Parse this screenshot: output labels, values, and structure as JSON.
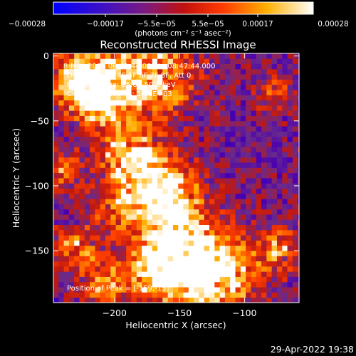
{
  "colorbar": {
    "tick_labels": [
      "-0.00028",
      "-0.00017",
      "-5.5e-05",
      "5.5e-05",
      "0.00017",
      "0.00028"
    ],
    "unit_label": "(photons cm⁻² s⁻¹ asec⁻²)"
  },
  "chart_data": {
    "type": "heatmap",
    "title": "Reconstructed RHESSI Image",
    "xlabel": "Heliocentric X (arcsec)",
    "ylabel": "Heliocentric Y (arcsec)",
    "xlim": [
      -247,
      -58
    ],
    "ylim": [
      -190,
      2
    ],
    "x_ticks": [
      -200,
      -150,
      -100
    ],
    "y_ticks": [
      0,
      -50,
      -100,
      -150
    ],
    "x_tick_labels": [
      "−200",
      "−150",
      "−100"
    ],
    "y_tick_labels": [
      "0",
      "−50",
      "−100",
      "−150"
    ],
    "value_range": [
      -0.00028,
      0.00028
    ],
    "colormap": [
      "#0000ff",
      "#4a00b0",
      "#6a2a8c",
      "#c01810",
      "#ff4000",
      "#ffb000",
      "#ffffff"
    ],
    "peak": [
      -159,
      -15
    ],
    "bright_regions": [
      {
        "x": -230,
        "y": -20,
        "w": 1.0,
        "r": 14
      },
      {
        "x": -185,
        "y": -15,
        "w": 1.0,
        "r": 28
      },
      {
        "x": -215,
        "y": -40,
        "w": 0.6,
        "r": 12
      },
      {
        "x": -190,
        "y": -80,
        "w": 0.8,
        "r": 16
      },
      {
        "x": -165,
        "y": -105,
        "w": 0.9,
        "r": 18
      },
      {
        "x": -155,
        "y": -125,
        "w": 0.7,
        "r": 14
      },
      {
        "x": -200,
        "y": -120,
        "w": 0.6,
        "r": 14
      },
      {
        "x": -150,
        "y": -160,
        "w": 1.0,
        "r": 22
      },
      {
        "x": -120,
        "y": -170,
        "w": 1.0,
        "r": 20
      },
      {
        "x": -175,
        "y": -165,
        "w": 0.7,
        "r": 14
      },
      {
        "x": -230,
        "y": -150,
        "w": 0.6,
        "r": 12
      },
      {
        "x": -210,
        "y": -180,
        "w": 0.6,
        "r": 12
      },
      {
        "x": -75,
        "y": -150,
        "w": 0.6,
        "r": 12
      },
      {
        "x": -80,
        "y": -30,
        "w": 0.5,
        "r": 10
      },
      {
        "x": -240,
        "y": -90,
        "w": 0.5,
        "r": 10
      }
    ],
    "annotations": [
      "8-May-2005 08:41:44.000 to 08:47:44.000",
      "Detectors: 3F 4F 5F 6F 7F 8F, Att 0",
      "Energy Range: 25.0 - 50.0 keV",
      "Clean     Total counts: 5.68E+03"
    ],
    "peak_label": "Position of Peak = [-159,-15]"
  },
  "timestamp": "29-Apr-2022 19:38"
}
